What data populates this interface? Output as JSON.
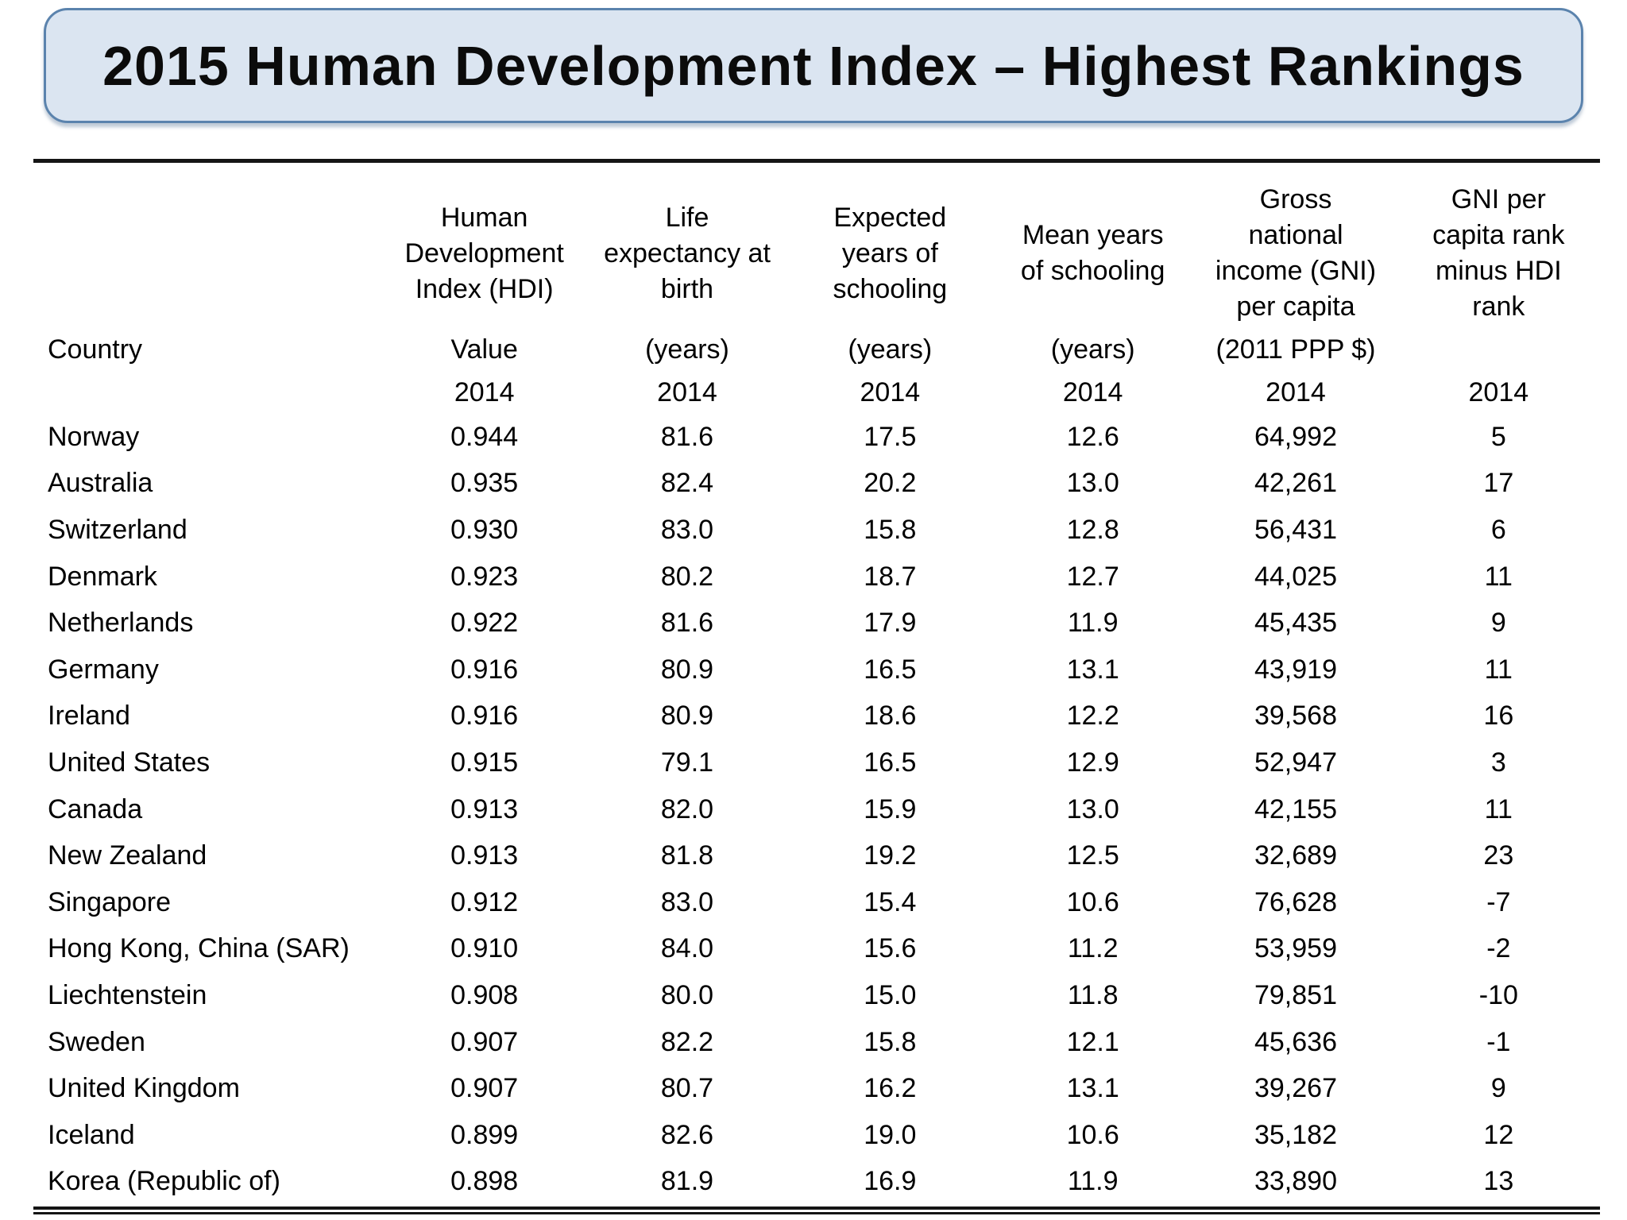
{
  "slide": {
    "title": "2015 Human Development Index – Highest Rankings"
  },
  "colors": {
    "title_box_fill": "#dbe5f1",
    "title_box_border": "#5b83ad",
    "text": "#000000",
    "rule": "#151515",
    "background": "#ffffff"
  },
  "chart_data": {
    "type": "table",
    "title": "2015 Human Development Index – Highest Rankings",
    "columns": [
      {
        "title_lines": [],
        "unit": "Country",
        "year": ""
      },
      {
        "title_lines": [
          "Human",
          "Development",
          "Index (HDI)"
        ],
        "unit": "Value",
        "year": "2014"
      },
      {
        "title_lines": [
          "Life",
          "expectancy at",
          "birth"
        ],
        "unit": "(years)",
        "year": "2014"
      },
      {
        "title_lines": [
          "Expected",
          "years of",
          "schooling"
        ],
        "unit": "(years)",
        "year": "2014"
      },
      {
        "title_lines": [
          "Mean years",
          "of schooling"
        ],
        "unit": "(years)",
        "year": "2014"
      },
      {
        "title_lines": [
          "Gross",
          "national",
          "income (GNI)",
          "per capita"
        ],
        "unit": "(2011 PPP $)",
        "year": "2014"
      },
      {
        "title_lines": [
          "GNI per",
          "capita rank",
          "minus HDI",
          "rank"
        ],
        "unit": "",
        "year": "2014"
      }
    ],
    "rows": [
      [
        "Norway",
        "0.944",
        "81.6",
        "17.5",
        "12.6",
        "64,992",
        "5"
      ],
      [
        "Australia",
        "0.935",
        "82.4",
        "20.2",
        "13.0",
        "42,261",
        "17"
      ],
      [
        "Switzerland",
        "0.930",
        "83.0",
        "15.8",
        "12.8",
        "56,431",
        "6"
      ],
      [
        "Denmark",
        "0.923",
        "80.2",
        "18.7",
        "12.7",
        "44,025",
        "11"
      ],
      [
        "Netherlands",
        "0.922",
        "81.6",
        "17.9",
        "11.9",
        "45,435",
        "9"
      ],
      [
        "Germany",
        "0.916",
        "80.9",
        "16.5",
        "13.1",
        "43,919",
        "11"
      ],
      [
        "Ireland",
        "0.916",
        "80.9",
        "18.6",
        "12.2",
        "39,568",
        "16"
      ],
      [
        "United States",
        "0.915",
        "79.1",
        "16.5",
        "12.9",
        "52,947",
        "3"
      ],
      [
        "Canada",
        "0.913",
        "82.0",
        "15.9",
        "13.0",
        "42,155",
        "11"
      ],
      [
        "New Zealand",
        "0.913",
        "81.8",
        "19.2",
        "12.5",
        "32,689",
        "23"
      ],
      [
        "Singapore",
        "0.912",
        "83.0",
        "15.4",
        "10.6",
        "76,628",
        "-7"
      ],
      [
        "Hong Kong, China (SAR)",
        "0.910",
        "84.0",
        "15.6",
        "11.2",
        "53,959",
        "-2"
      ],
      [
        "Liechtenstein",
        "0.908",
        "80.0",
        "15.0",
        "11.8",
        "79,851",
        "-10"
      ],
      [
        "Sweden",
        "0.907",
        "82.2",
        "15.8",
        "12.1",
        "45,636",
        "-1"
      ],
      [
        "United Kingdom",
        "0.907",
        "80.7",
        "16.2",
        "13.1",
        "39,267",
        "9"
      ],
      [
        "Iceland",
        "0.899",
        "82.6",
        "19.0",
        "10.6",
        "35,182",
        "12"
      ],
      [
        "Korea (Republic of)",
        "0.898",
        "81.9",
        "16.9",
        "11.9",
        "33,890",
        "13"
      ]
    ]
  }
}
